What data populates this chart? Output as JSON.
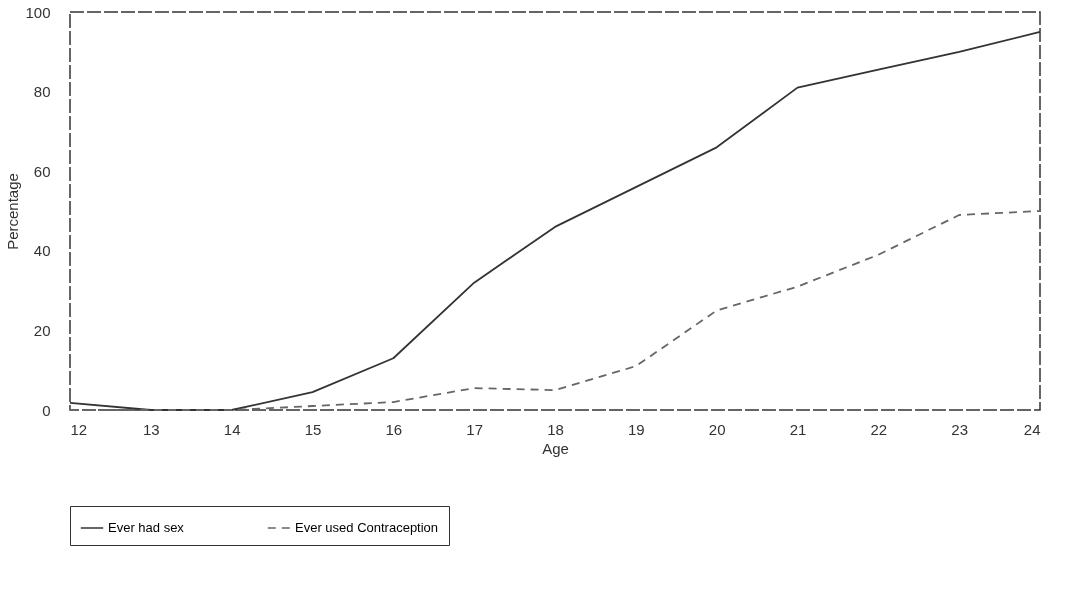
{
  "chart_data": {
    "type": "line",
    "xlabel": "Age",
    "ylabel": "Percentage",
    "x": [
      12,
      13,
      14,
      15,
      16,
      17,
      18,
      19,
      20,
      21,
      22,
      23,
      24
    ],
    "xlim": [
      12,
      24
    ],
    "xticks": [
      12,
      13,
      14,
      15,
      16,
      17,
      18,
      19,
      20,
      21,
      22,
      23,
      24
    ],
    "ylim": [
      0,
      100
    ],
    "yticks": [
      0,
      20,
      40,
      60,
      80,
      100
    ],
    "grid": false,
    "legend": "bottom",
    "series": [
      {
        "name": "Ever had sex",
        "color": "#333333",
        "line_style": "solid",
        "values": [
          1.8,
          0,
          0,
          4.5,
          13,
          32,
          46,
          56,
          66,
          81,
          85.5,
          90,
          95
        ]
      },
      {
        "name": "Ever used Contraception",
        "color": "#666666",
        "line_style": "dashed",
        "values": [
          0,
          0,
          0,
          1,
          2,
          5.5,
          5,
          11,
          25,
          31,
          39,
          49,
          50
        ]
      }
    ]
  }
}
